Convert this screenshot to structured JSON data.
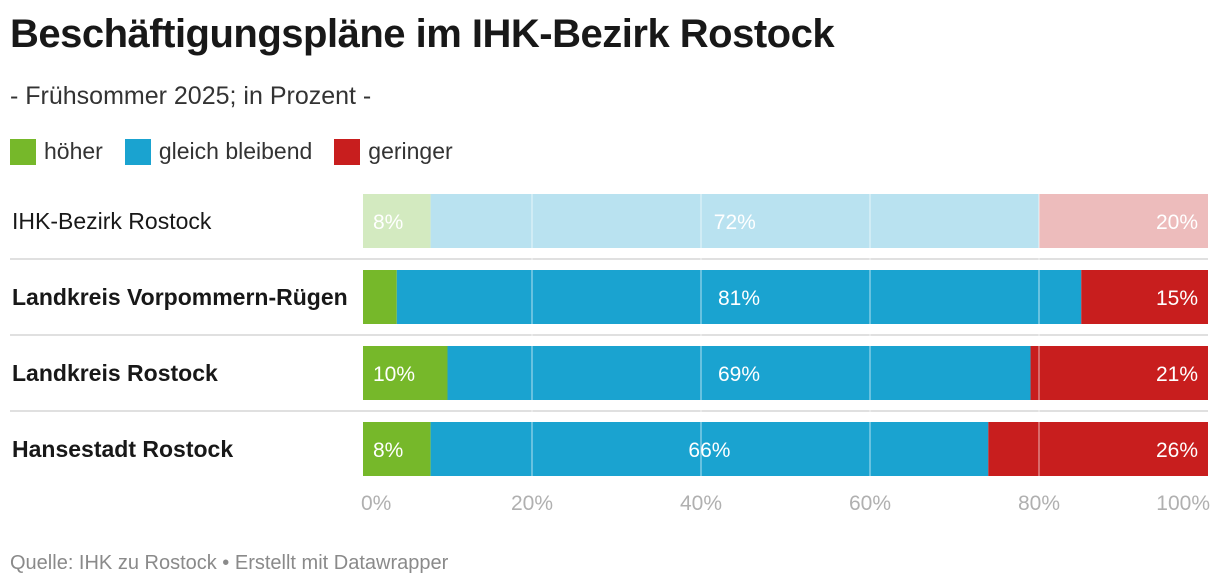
{
  "title": "Beschäftigungspläne im IHK-Bezirk Rostock",
  "subtitle": "- Frühsommer 2025; in Prozent -",
  "source": "Quelle: IHK zu Rostock • Erstellt mit Datawrapper",
  "colors": {
    "hoeher": "#76b82a",
    "gleich": "#1aa3d0",
    "geringer": "#c81e1e",
    "hoeher_faded": "#d3eac0",
    "gleich_faded": "#b9e2f0",
    "geringer_faded": "#edbcbc"
  },
  "chart_data": {
    "type": "bar",
    "orientation": "horizontal",
    "stacked": true,
    "categories": [
      "IHK-Bezirk Rostock",
      "Landkreis Vorpommern-Rügen",
      "Landkreis Rostock",
      "Hansestadt Rostock"
    ],
    "highlighted": [
      false,
      true,
      true,
      true
    ],
    "series": [
      {
        "name": "höher",
        "values": [
          8,
          4,
          10,
          8
        ],
        "labels": [
          "8%",
          "",
          "10%",
          "8%"
        ]
      },
      {
        "name": "gleich bleibend",
        "values": [
          72,
          81,
          69,
          66
        ],
        "labels": [
          "72%",
          "81%",
          "69%",
          "66%"
        ]
      },
      {
        "name": "geringer",
        "values": [
          20,
          15,
          21,
          26
        ],
        "labels": [
          "20%",
          "15%",
          "21%",
          "26%"
        ]
      }
    ],
    "xlim": [
      0,
      100
    ],
    "xticks": [
      "0%",
      "20%",
      "40%",
      "60%",
      "80%",
      "100%"
    ],
    "grid": true,
    "legend_position": "top-left"
  }
}
